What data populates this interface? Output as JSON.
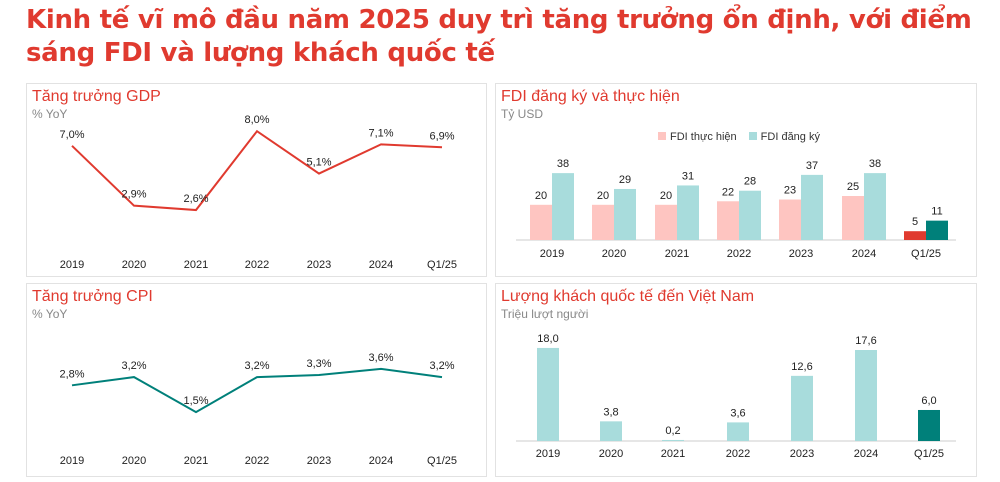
{
  "title": "Kinh tế vĩ mô đầu năm 2025 duy trì tăng trưởng ổn định, với điểm sáng FDI và lượng khách quốc tế",
  "colors": {
    "red": "#e03a2f",
    "teal": "#00807a",
    "light_teal": "#a8dcdc",
    "pink": "#fec5c1"
  },
  "chart_data": [
    {
      "id": "gdp",
      "type": "line",
      "title": "Tăng trưởng GDP",
      "subtitle": "% YoY",
      "categories": [
        "2019",
        "2020",
        "2021",
        "2022",
        "2023",
        "2024",
        "Q1/25"
      ],
      "values": [
        7.0,
        2.9,
        2.6,
        8.0,
        5.1,
        7.1,
        6.9
      ],
      "labels": [
        "7,0%",
        "2,9%",
        "2,6%",
        "8,0%",
        "5,1%",
        "7,1%",
        "6,9%"
      ],
      "color": "#e03a2f"
    },
    {
      "id": "fdi",
      "type": "bar",
      "title": "FDI đăng ký và thực hiện",
      "subtitle": "Tỷ USD",
      "categories": [
        "2019",
        "2020",
        "2021",
        "2022",
        "2023",
        "2024",
        "Q1/25"
      ],
      "legend": "top",
      "series": [
        {
          "name": "FDI thực hiện",
          "values": [
            20,
            20,
            20,
            22,
            23,
            25,
            5
          ],
          "color": "#fec5c1",
          "highlight_color": "#e03a2f"
        },
        {
          "name": "FDI đăng ký",
          "values": [
            38,
            29,
            31,
            28,
            37,
            38,
            11
          ],
          "color": "#a8dcdc",
          "highlight_color": "#00807a"
        }
      ]
    },
    {
      "id": "cpi",
      "type": "line",
      "title": "Tăng trưởng CPI",
      "subtitle": "% YoY",
      "categories": [
        "2019",
        "2020",
        "2021",
        "2022",
        "2023",
        "2024",
        "Q1/25"
      ],
      "values": [
        2.8,
        3.2,
        1.5,
        3.2,
        3.3,
        3.6,
        3.2
      ],
      "labels": [
        "2,8%",
        "3,2%",
        "1,5%",
        "3,2%",
        "3,3%",
        "3,6%",
        "3,2%"
      ],
      "color": "#00807a"
    },
    {
      "id": "tourists",
      "type": "bar",
      "title": "Lượng khách quốc tế đến Việt Nam",
      "subtitle": "Triệu lượt người",
      "categories": [
        "2019",
        "2020",
        "2021",
        "2022",
        "2023",
        "2024",
        "Q1/25"
      ],
      "values": [
        18.0,
        3.8,
        0.2,
        3.6,
        12.6,
        17.6,
        6.0
      ],
      "labels": [
        "18,0",
        "3,8",
        "0,2",
        "3,6",
        "12,6",
        "17,6",
        "6,0"
      ],
      "color": "#a8dcdc",
      "highlight_color": "#00807a"
    }
  ]
}
